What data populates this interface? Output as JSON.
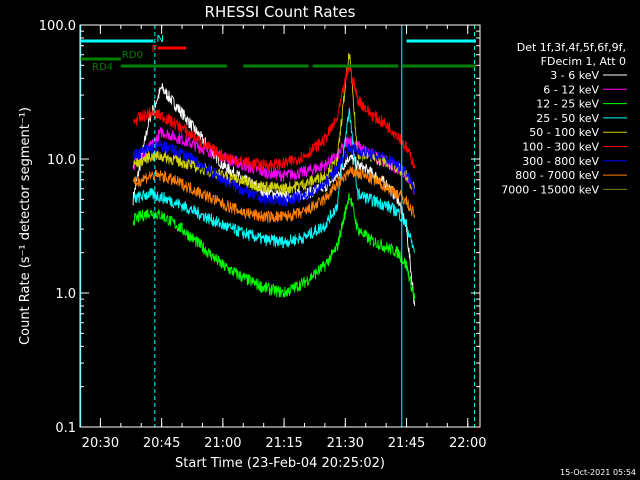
{
  "chart_data": {
    "type": "line",
    "title": "RHESSI Count Rates",
    "xlabel": "Start Time (23-Feb-04 20:25:02)",
    "ylabel": "Count Rate (s⁻¹ detector segment⁻¹)",
    "y_scale": "log",
    "ylim": [
      0.1,
      100.0
    ],
    "xlim": [
      "20:25:00",
      "22:03:00"
    ],
    "y_ticks": [
      "0.1",
      "1.0",
      "10.0",
      "100.0"
    ],
    "x_ticks": [
      "20:30",
      "20:45",
      "21:00",
      "21:15",
      "21:30",
      "21:45",
      "22:00"
    ],
    "legend_position": "top-right",
    "legend_header": [
      "Det 1f,3f,4f,5f,6f,9f,",
      "FDecim 1, Att 0"
    ],
    "timestamp": "15-Oct-2021 05:54",
    "colors": {
      "background": "#000000",
      "axes": "#ffffff",
      "flag_lines": "#00ffff"
    },
    "flags": [
      {
        "label": "N",
        "color": "#00ffff",
        "segments": [
          [
            "20:25",
            "20:43"
          ],
          [
            "21:45",
            "22:02"
          ]
        ]
      },
      {
        "label": "F",
        "color": "#ff0000",
        "segments": [
          [
            "20:44",
            "20:51"
          ]
        ]
      },
      {
        "label": "RD0",
        "color": "#008000",
        "segments": [
          [
            "20:25",
            "20:35"
          ]
        ]
      },
      {
        "label": "RD4",
        "color": "#008000",
        "segments": [
          [
            "20:35",
            "21:01"
          ],
          [
            "21:05",
            "21:21"
          ],
          [
            "21:22",
            "21:43"
          ],
          [
            "21:44",
            "22:02"
          ]
        ]
      }
    ],
    "vlines": [
      {
        "time": "20:25:10",
        "style": "solid"
      },
      {
        "time": "20:43:20",
        "style": "dashed"
      },
      {
        "time": "21:43:50",
        "style": "solid"
      },
      {
        "time": "22:01:40",
        "style": "dashed"
      }
    ],
    "series": [
      {
        "name": "3 - 6 keV",
        "color": "#ffffff",
        "x": [
          "20:38",
          "20:42",
          "20:45",
          "20:50",
          "20:55",
          "21:00",
          "21:05",
          "21:10",
          "21:15",
          "21:20",
          "21:25",
          "21:28",
          "21:30",
          "21:31",
          "21:33",
          "21:36",
          "21:40",
          "21:43",
          "21:45",
          "21:47"
        ],
        "y": [
          5.0,
          20.0,
          34.0,
          22.0,
          14.0,
          9.0,
          7.0,
          5.8,
          5.2,
          5.5,
          6.2,
          7.5,
          9.5,
          10.5,
          9.0,
          8.0,
          6.5,
          5.0,
          3.0,
          0.8
        ]
      },
      {
        "name": "6 - 12 keV",
        "color": "#ff00ff",
        "x": [
          "20:38",
          "20:42",
          "20:45",
          "20:50",
          "20:55",
          "21:00",
          "21:05",
          "21:10",
          "21:15",
          "21:20",
          "21:25",
          "21:28",
          "21:30",
          "21:31",
          "21:33",
          "21:36",
          "21:40",
          "21:43",
          "21:45",
          "21:47"
        ],
        "y": [
          9.0,
          12.0,
          16.0,
          14.0,
          12.0,
          10.5,
          9.0,
          8.0,
          7.5,
          8.0,
          9.0,
          10.5,
          13.0,
          14.0,
          12.5,
          11.0,
          9.5,
          8.5,
          7.5,
          5.5
        ]
      },
      {
        "name": "12 - 25 keV",
        "color": "#00ff00",
        "x": [
          "20:38",
          "20:42",
          "20:45",
          "20:50",
          "20:55",
          "21:00",
          "21:05",
          "21:10",
          "21:15",
          "21:20",
          "21:25",
          "21:28",
          "21:30",
          "21:31",
          "21:33",
          "21:36",
          "21:40",
          "21:43",
          "21:45",
          "21:47"
        ],
        "y": [
          3.5,
          4.0,
          3.8,
          3.0,
          2.2,
          1.6,
          1.3,
          1.1,
          1.0,
          1.2,
          1.6,
          2.2,
          4.0,
          5.5,
          3.0,
          2.5,
          2.2,
          2.0,
          1.6,
          0.9
        ]
      },
      {
        "name": "25 - 50 keV",
        "color": "#00ffff",
        "x": [
          "20:38",
          "20:42",
          "20:45",
          "20:50",
          "20:55",
          "21:00",
          "21:05",
          "21:10",
          "21:15",
          "21:20",
          "21:25",
          "21:28",
          "21:30",
          "21:31",
          "21:33",
          "21:36",
          "21:40",
          "21:43",
          "21:45",
          "21:47"
        ],
        "y": [
          5.0,
          5.5,
          5.2,
          4.5,
          3.8,
          3.2,
          2.8,
          2.5,
          2.4,
          2.6,
          3.2,
          4.5,
          14.0,
          24.0,
          5.5,
          5.0,
          4.5,
          4.0,
          3.2,
          2.0
        ]
      },
      {
        "name": "50 - 100 keV",
        "color": "#d0d000",
        "x": [
          "20:38",
          "20:42",
          "20:45",
          "20:50",
          "20:55",
          "21:00",
          "21:05",
          "21:10",
          "21:15",
          "21:20",
          "21:25",
          "21:28",
          "21:30",
          "21:31",
          "21:33",
          "21:36",
          "21:40",
          "21:43",
          "21:45",
          "21:47"
        ],
        "y": [
          9.0,
          10.5,
          10.5,
          9.5,
          8.5,
          7.5,
          6.8,
          6.2,
          6.0,
          6.5,
          7.5,
          9.5,
          35.0,
          62.0,
          11.0,
          10.5,
          9.5,
          8.5,
          7.5,
          6.0
        ]
      },
      {
        "name": "100 - 300 keV",
        "color": "#ff0000",
        "x": [
          "20:38",
          "20:42",
          "20:45",
          "20:50",
          "20:55",
          "21:00",
          "21:05",
          "21:10",
          "21:15",
          "21:20",
          "21:25",
          "21:28",
          "21:30",
          "21:31",
          "21:33",
          "21:36",
          "21:40",
          "21:43",
          "21:45",
          "21:47"
        ],
        "y": [
          19.0,
          22.0,
          21.0,
          17.0,
          13.0,
          10.5,
          9.5,
          9.0,
          9.2,
          10.5,
          14.0,
          20.0,
          38.0,
          50.0,
          28.0,
          22.0,
          18.0,
          15.0,
          12.0,
          9.0
        ]
      },
      {
        "name": "300 - 800 keV",
        "color": "#0000ff",
        "x": [
          "20:38",
          "20:42",
          "20:45",
          "20:50",
          "20:55",
          "21:00",
          "21:05",
          "21:10",
          "21:15",
          "21:20",
          "21:25",
          "21:28",
          "21:30",
          "21:31",
          "21:33",
          "21:36",
          "21:40",
          "21:43",
          "21:45",
          "21:47"
        ],
        "y": [
          10.5,
          12.0,
          12.5,
          11.0,
          9.0,
          7.0,
          5.8,
          5.0,
          4.9,
          5.3,
          6.5,
          8.5,
          11.0,
          12.0,
          11.5,
          11.0,
          10.0,
          9.0,
          8.0,
          6.0
        ]
      },
      {
        "name": "800 - 7000 keV",
        "color": "#ff8000",
        "x": [
          "20:38",
          "20:42",
          "20:45",
          "20:50",
          "20:55",
          "21:00",
          "21:05",
          "21:10",
          "21:15",
          "21:20",
          "21:25",
          "21:28",
          "21:30",
          "21:31",
          "21:33",
          "21:36",
          "21:40",
          "21:43",
          "21:45",
          "21:47"
        ],
        "y": [
          6.5,
          7.5,
          7.5,
          6.5,
          5.5,
          4.6,
          4.0,
          3.7,
          3.7,
          4.0,
          5.0,
          6.5,
          7.5,
          8.0,
          7.8,
          7.2,
          6.2,
          5.5,
          4.8,
          3.8
        ]
      },
      {
        "name": "7000 - 15000 keV",
        "color": "#808000",
        "x": [],
        "y": []
      }
    ]
  }
}
